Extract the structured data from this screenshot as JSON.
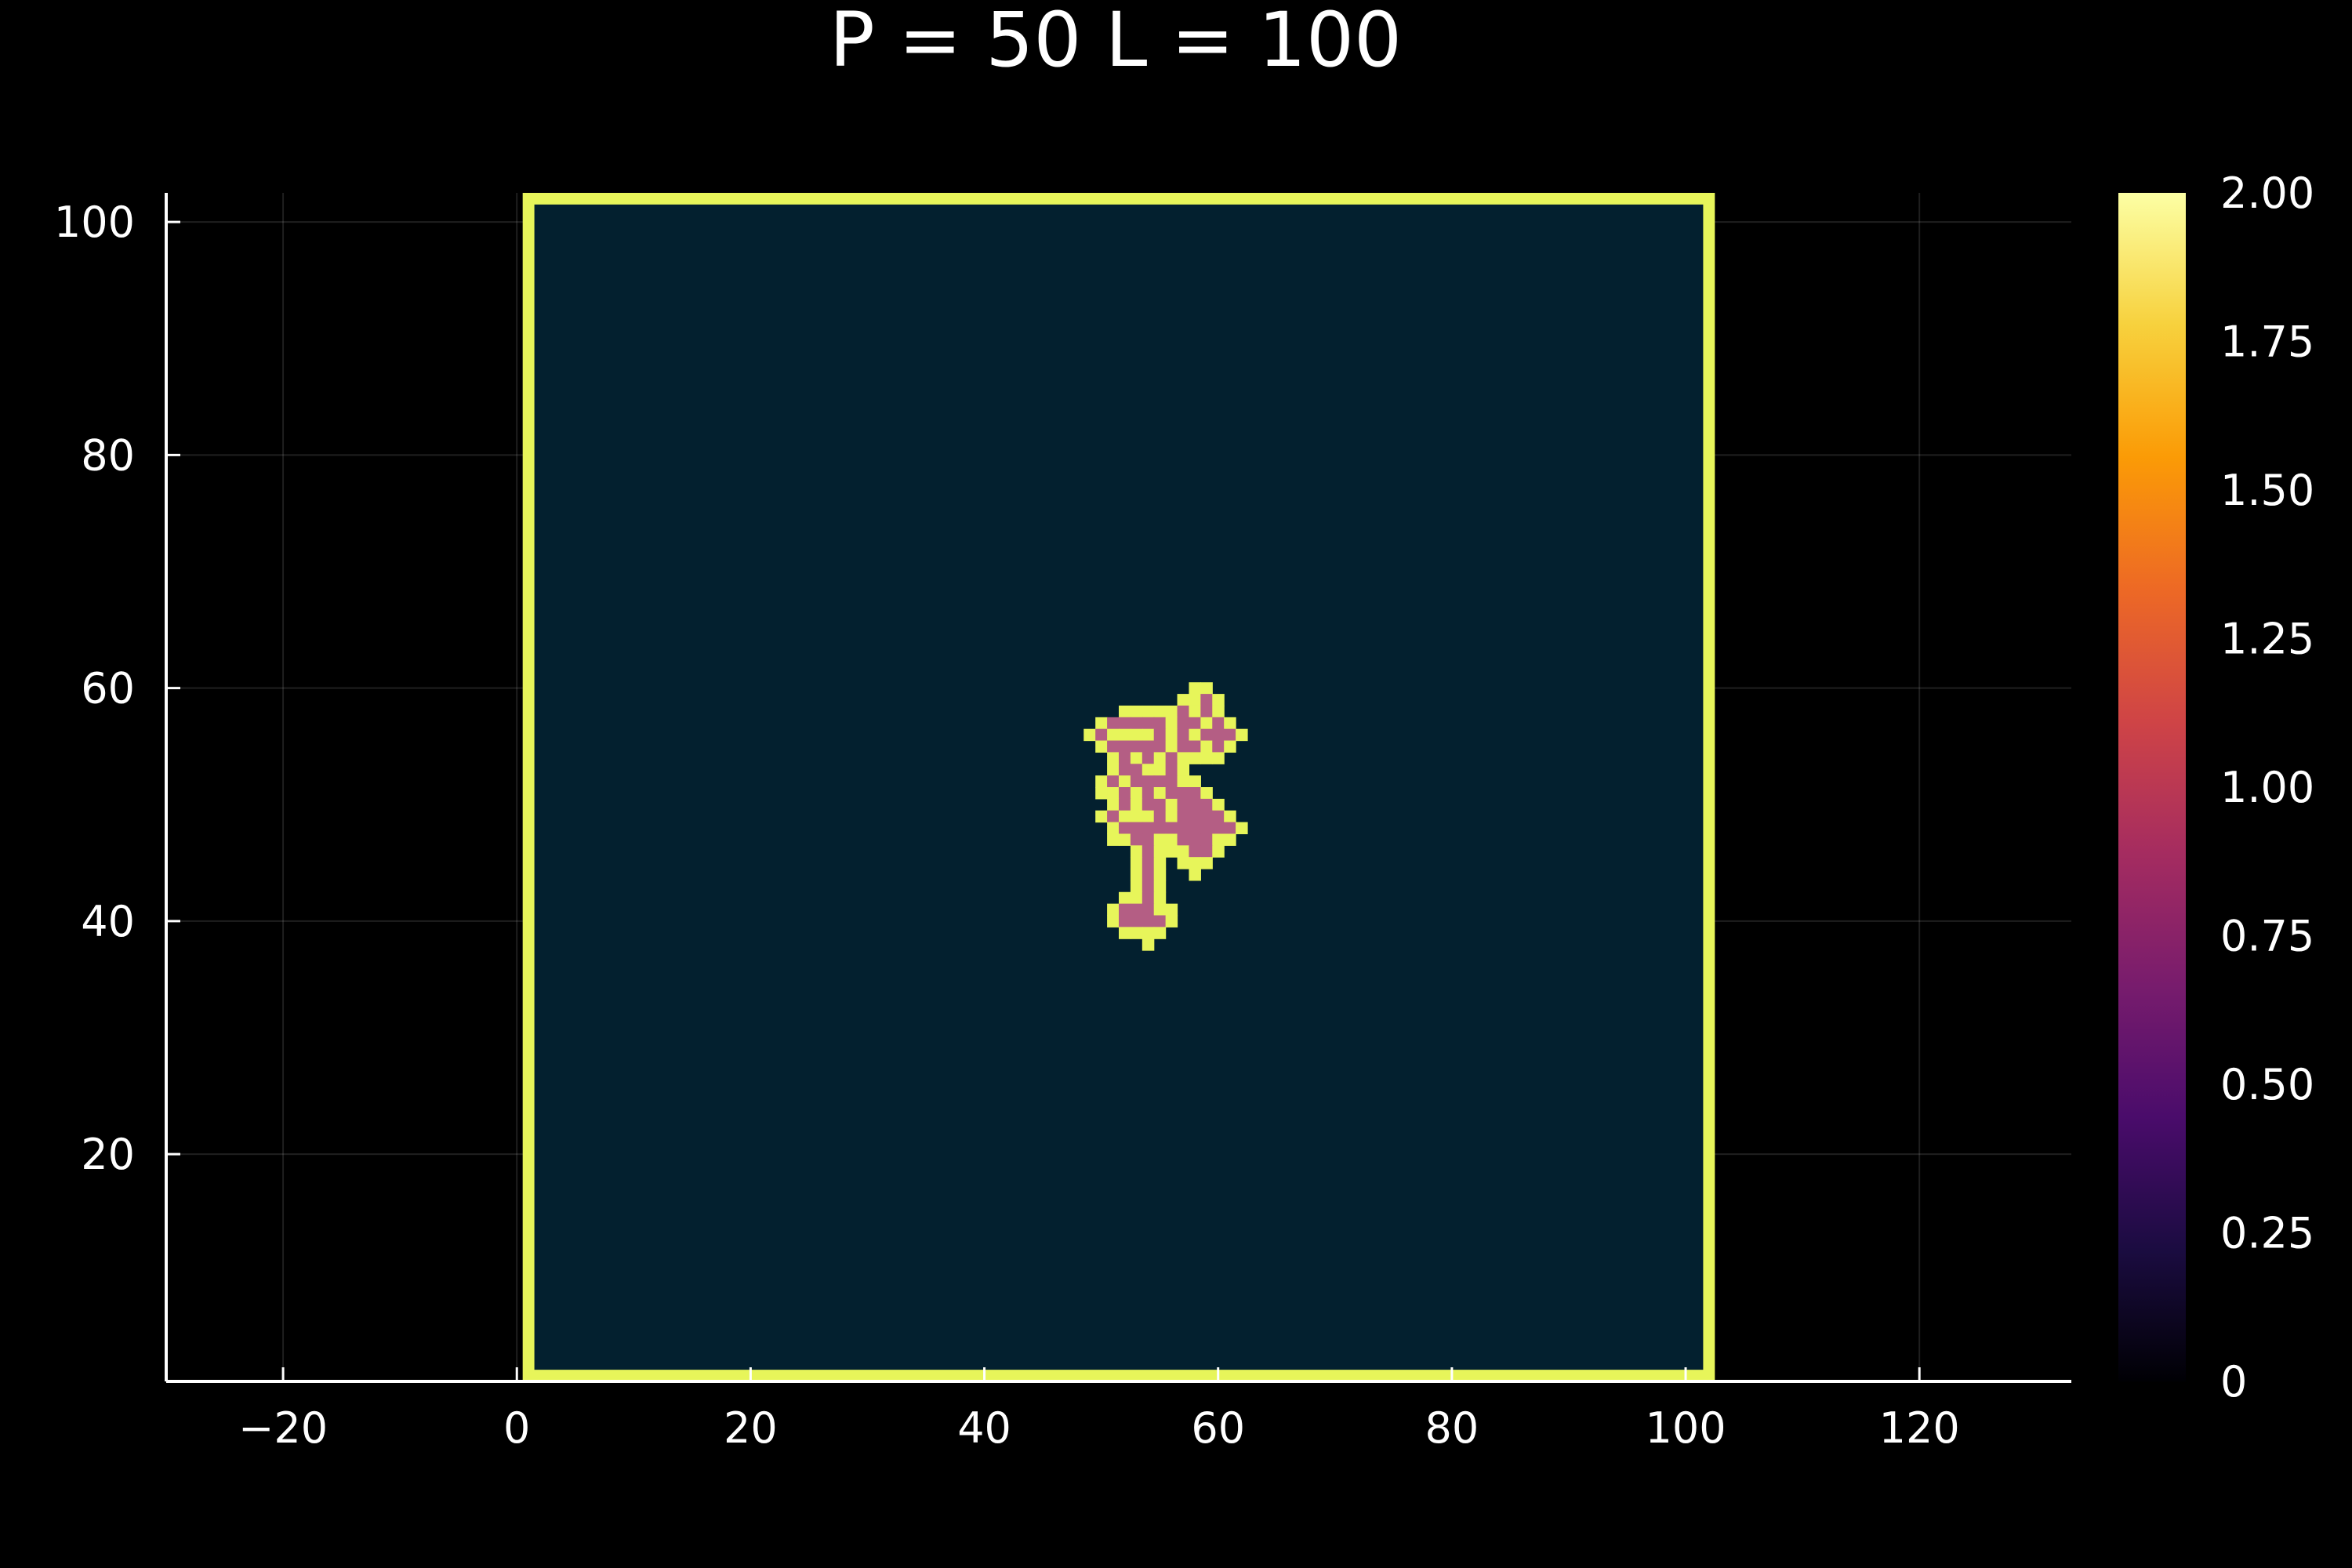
{
  "chart_data": {
    "type": "heatmap",
    "title": "P = 50 L = 100",
    "xlabel": "",
    "ylabel": "",
    "xlim": [
      -30,
      133
    ],
    "ylim": [
      0.5,
      102.5
    ],
    "x_ticks": [
      -20,
      0,
      20,
      40,
      60,
      80,
      100,
      120
    ],
    "x_tick_labels": [
      "−20",
      "0",
      "20",
      "40",
      "60",
      "80",
      "100",
      "120"
    ],
    "y_ticks": [
      20,
      40,
      60,
      80,
      100
    ],
    "y_tick_labels": [
      "20",
      "40",
      "60",
      "80",
      "100"
    ],
    "grid": true,
    "grid_extent": [
      1,
      102
    ],
    "background_value": 0,
    "colorbar": {
      "min": 0,
      "max": 2,
      "ticks": [
        0,
        0.25,
        0.5,
        0.75,
        1.0,
        1.25,
        1.5,
        1.75,
        2.0
      ],
      "tick_labels": [
        "0",
        "0.25",
        "0.50",
        "0.75",
        "1.00",
        "1.25",
        "1.50",
        "1.75",
        "2.00"
      ],
      "colormap": [
        "#000004",
        "#1b0c41",
        "#4a0c6b",
        "#781c6d",
        "#a52c60",
        "#cf4446",
        "#ed6925",
        "#fb9b06",
        "#f7d13d",
        "#fcffa4"
      ]
    },
    "colors": {
      "value_0": "#03202f",
      "value_1": "#b45e84",
      "value_2": "#e7f55a"
    },
    "cluster_rows": [
      {
        "y": 60,
        "cells": [
          [
            58,
            2
          ],
          [
            59,
            2
          ]
        ]
      },
      {
        "y": 59,
        "cells": [
          [
            57,
            2
          ],
          [
            58,
            2
          ],
          [
            59,
            1
          ],
          [
            60,
            2
          ]
        ]
      },
      {
        "y": 58,
        "cells": [
          [
            52,
            2
          ],
          [
            53,
            2
          ],
          [
            54,
            2
          ],
          [
            55,
            2
          ],
          [
            56,
            2
          ],
          [
            57,
            1
          ],
          [
            58,
            2
          ],
          [
            59,
            1
          ],
          [
            60,
            2
          ]
        ]
      },
      {
        "y": 57,
        "cells": [
          [
            50,
            2
          ],
          [
            51,
            1
          ],
          [
            52,
            1
          ],
          [
            53,
            1
          ],
          [
            54,
            1
          ],
          [
            55,
            1
          ],
          [
            56,
            2
          ],
          [
            57,
            1
          ],
          [
            58,
            1
          ],
          [
            59,
            2
          ],
          [
            60,
            1
          ],
          [
            61,
            2
          ]
        ]
      },
      {
        "y": 56,
        "cells": [
          [
            49,
            2
          ],
          [
            50,
            1
          ],
          [
            51,
            2
          ],
          [
            52,
            2
          ],
          [
            53,
            2
          ],
          [
            54,
            2
          ],
          [
            55,
            1
          ],
          [
            56,
            2
          ],
          [
            57,
            1
          ],
          [
            58,
            2
          ],
          [
            59,
            1
          ],
          [
            60,
            1
          ],
          [
            61,
            1
          ],
          [
            62,
            2
          ]
        ]
      },
      {
        "y": 55,
        "cells": [
          [
            50,
            2
          ],
          [
            51,
            1
          ],
          [
            52,
            1
          ],
          [
            53,
            1
          ],
          [
            54,
            1
          ],
          [
            55,
            1
          ],
          [
            56,
            2
          ],
          [
            57,
            1
          ],
          [
            58,
            1
          ],
          [
            59,
            2
          ],
          [
            60,
            1
          ],
          [
            61,
            2
          ]
        ]
      },
      {
        "y": 54,
        "cells": [
          [
            51,
            2
          ],
          [
            52,
            1
          ],
          [
            53,
            2
          ],
          [
            54,
            1
          ],
          [
            55,
            2
          ],
          [
            56,
            1
          ],
          [
            57,
            2
          ],
          [
            58,
            2
          ],
          [
            59,
            2
          ],
          [
            60,
            2
          ]
        ]
      },
      {
        "y": 53,
        "cells": [
          [
            51,
            2
          ],
          [
            52,
            1
          ],
          [
            53,
            1
          ],
          [
            54,
            2
          ],
          [
            55,
            2
          ],
          [
            56,
            1
          ],
          [
            57,
            2
          ]
        ]
      },
      {
        "y": 52,
        "cells": [
          [
            50,
            2
          ],
          [
            51,
            1
          ],
          [
            52,
            2
          ],
          [
            53,
            1
          ],
          [
            54,
            1
          ],
          [
            55,
            1
          ],
          [
            56,
            1
          ],
          [
            57,
            2
          ],
          [
            58,
            2
          ]
        ]
      },
      {
        "y": 51,
        "cells": [
          [
            50,
            2
          ],
          [
            51,
            2
          ],
          [
            52,
            1
          ],
          [
            53,
            2
          ],
          [
            54,
            1
          ],
          [
            55,
            2
          ],
          [
            56,
            1
          ],
          [
            57,
            1
          ],
          [
            58,
            1
          ],
          [
            59,
            2
          ]
        ]
      },
      {
        "y": 50,
        "cells": [
          [
            51,
            2
          ],
          [
            52,
            1
          ],
          [
            53,
            2
          ],
          [
            54,
            1
          ],
          [
            55,
            1
          ],
          [
            56,
            2
          ],
          [
            57,
            1
          ],
          [
            58,
            1
          ],
          [
            59,
            1
          ],
          [
            60,
            2
          ]
        ]
      },
      {
        "y": 49,
        "cells": [
          [
            50,
            2
          ],
          [
            51,
            1
          ],
          [
            52,
            2
          ],
          [
            53,
            2
          ],
          [
            54,
            2
          ],
          [
            55,
            1
          ],
          [
            56,
            2
          ],
          [
            57,
            1
          ],
          [
            58,
            1
          ],
          [
            59,
            1
          ],
          [
            60,
            1
          ],
          [
            61,
            2
          ]
        ]
      },
      {
        "y": 48,
        "cells": [
          [
            51,
            2
          ],
          [
            52,
            1
          ],
          [
            53,
            1
          ],
          [
            54,
            1
          ],
          [
            55,
            1
          ],
          [
            56,
            1
          ],
          [
            57,
            1
          ],
          [
            58,
            1
          ],
          [
            59,
            1
          ],
          [
            60,
            1
          ],
          [
            61,
            1
          ],
          [
            62,
            2
          ]
        ]
      },
      {
        "y": 47,
        "cells": [
          [
            51,
            2
          ],
          [
            52,
            2
          ],
          [
            53,
            1
          ],
          [
            54,
            1
          ],
          [
            55,
            2
          ],
          [
            56,
            2
          ],
          [
            57,
            1
          ],
          [
            58,
            1
          ],
          [
            59,
            1
          ],
          [
            60,
            2
          ],
          [
            61,
            2
          ]
        ]
      },
      {
        "y": 46,
        "cells": [
          [
            53,
            2
          ],
          [
            54,
            1
          ],
          [
            55,
            2
          ],
          [
            56,
            2
          ],
          [
            57,
            2
          ],
          [
            58,
            1
          ],
          [
            59,
            1
          ],
          [
            60,
            2
          ]
        ]
      },
      {
        "y": 45,
        "cells": [
          [
            53,
            2
          ],
          [
            54,
            1
          ],
          [
            55,
            2
          ],
          [
            57,
            2
          ],
          [
            58,
            2
          ],
          [
            59,
            2
          ]
        ]
      },
      {
        "y": 44,
        "cells": [
          [
            53,
            2
          ],
          [
            54,
            1
          ],
          [
            55,
            2
          ],
          [
            58,
            2
          ]
        ]
      },
      {
        "y": 43,
        "cells": [
          [
            53,
            2
          ],
          [
            54,
            1
          ],
          [
            55,
            2
          ]
        ]
      },
      {
        "y": 42,
        "cells": [
          [
            52,
            2
          ],
          [
            53,
            2
          ],
          [
            54,
            1
          ],
          [
            55,
            2
          ]
        ]
      },
      {
        "y": 41,
        "cells": [
          [
            51,
            2
          ],
          [
            52,
            1
          ],
          [
            53,
            1
          ],
          [
            54,
            1
          ],
          [
            55,
            2
          ],
          [
            56,
            2
          ]
        ]
      },
      {
        "y": 40,
        "cells": [
          [
            51,
            2
          ],
          [
            52,
            1
          ],
          [
            53,
            1
          ],
          [
            54,
            1
          ],
          [
            55,
            1
          ],
          [
            56,
            2
          ]
        ]
      },
      {
        "y": 39,
        "cells": [
          [
            52,
            2
          ],
          [
            53,
            2
          ],
          [
            54,
            2
          ],
          [
            55,
            2
          ]
        ]
      },
      {
        "y": 38,
        "cells": [
          [
            54,
            2
          ]
        ]
      }
    ]
  }
}
